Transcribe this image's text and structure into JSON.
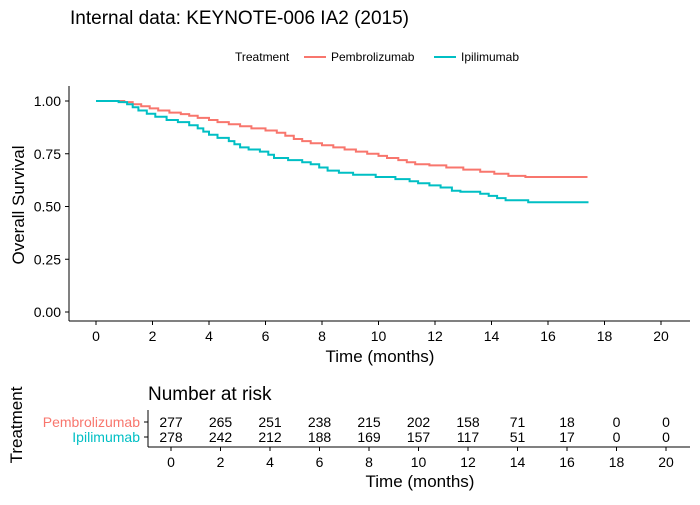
{
  "title": "Internal data: KEYNOTE-006 IA2 (2015)",
  "legend": {
    "title": "Treatment",
    "entries": [
      {
        "label": "Pembrolizumab",
        "color": "#F8766D"
      },
      {
        "label": "Ipilimumab",
        "color": "#00BFC4"
      }
    ]
  },
  "chart_data": [
    {
      "type": "line",
      "subtype": "kaplan-meier step curve",
      "xlabel": "Time (months)",
      "ylabel": "Overall Survival",
      "xlim": [
        0,
        20
      ],
      "ylim": [
        0,
        1
      ],
      "xticks": [
        0,
        2,
        4,
        6,
        8,
        10,
        12,
        14,
        16,
        18,
        20
      ],
      "yticks": [
        0.0,
        0.25,
        0.5,
        0.75,
        1.0
      ],
      "ytick_labels": [
        "0.00",
        "0.25",
        "0.50",
        "0.75",
        "1.00"
      ],
      "grid": false,
      "legend_position": "top",
      "series": [
        {
          "name": "Pembrolizumab",
          "color": "#F8766D",
          "points": [
            [
              0,
              1.0
            ],
            [
              0.5,
              1.0
            ],
            [
              1.0,
              0.995
            ],
            [
              1.3,
              0.985
            ],
            [
              1.6,
              0.975
            ],
            [
              1.9,
              0.965
            ],
            [
              2.2,
              0.955
            ],
            [
              2.6,
              0.945
            ],
            [
              3.0,
              0.938
            ],
            [
              3.3,
              0.93
            ],
            [
              3.6,
              0.92
            ],
            [
              4.0,
              0.91
            ],
            [
              4.3,
              0.9
            ],
            [
              4.7,
              0.89
            ],
            [
              5.1,
              0.88
            ],
            [
              5.5,
              0.87
            ],
            [
              6.0,
              0.86
            ],
            [
              6.4,
              0.85
            ],
            [
              6.7,
              0.835
            ],
            [
              7.0,
              0.82
            ],
            [
              7.3,
              0.81
            ],
            [
              7.6,
              0.8
            ],
            [
              8.0,
              0.79
            ],
            [
              8.4,
              0.78
            ],
            [
              8.8,
              0.77
            ],
            [
              9.2,
              0.76
            ],
            [
              9.6,
              0.75
            ],
            [
              10.0,
              0.74
            ],
            [
              10.3,
              0.73
            ],
            [
              10.7,
              0.72
            ],
            [
              11.0,
              0.71
            ],
            [
              11.3,
              0.7
            ],
            [
              11.8,
              0.695
            ],
            [
              12.4,
              0.685
            ],
            [
              13.0,
              0.675
            ],
            [
              13.6,
              0.665
            ],
            [
              14.1,
              0.655
            ],
            [
              14.6,
              0.645
            ],
            [
              15.2,
              0.64
            ],
            [
              17.4,
              0.64
            ]
          ]
        },
        {
          "name": "Ipilimumab",
          "color": "#00BFC4",
          "points": [
            [
              0,
              1.0
            ],
            [
              0.8,
              0.995
            ],
            [
              1.1,
              0.985
            ],
            [
              1.3,
              0.97
            ],
            [
              1.5,
              0.955
            ],
            [
              1.8,
              0.94
            ],
            [
              2.1,
              0.925
            ],
            [
              2.5,
              0.91
            ],
            [
              2.9,
              0.9
            ],
            [
              3.3,
              0.885
            ],
            [
              3.6,
              0.87
            ],
            [
              3.8,
              0.855
            ],
            [
              4.0,
              0.84
            ],
            [
              4.3,
              0.825
            ],
            [
              4.7,
              0.81
            ],
            [
              4.9,
              0.795
            ],
            [
              5.1,
              0.78
            ],
            [
              5.4,
              0.77
            ],
            [
              5.8,
              0.76
            ],
            [
              6.1,
              0.745
            ],
            [
              6.3,
              0.73
            ],
            [
              6.8,
              0.72
            ],
            [
              7.3,
              0.71
            ],
            [
              7.6,
              0.7
            ],
            [
              7.9,
              0.685
            ],
            [
              8.2,
              0.67
            ],
            [
              8.6,
              0.66
            ],
            [
              9.1,
              0.65
            ],
            [
              9.9,
              0.64
            ],
            [
              10.6,
              0.63
            ],
            [
              11.1,
              0.62
            ],
            [
              11.4,
              0.61
            ],
            [
              11.8,
              0.6
            ],
            [
              12.2,
              0.59
            ],
            [
              12.6,
              0.575
            ],
            [
              12.9,
              0.57
            ],
            [
              13.6,
              0.56
            ],
            [
              13.9,
              0.55
            ],
            [
              14.2,
              0.54
            ],
            [
              14.5,
              0.53
            ],
            [
              15.3,
              0.52
            ],
            [
              17.4,
              0.515
            ]
          ]
        }
      ]
    },
    {
      "type": "table",
      "title": "Number at risk",
      "row_axis_label": "Treatment",
      "xlabel": "Time (months)",
      "columns": [
        0,
        2,
        4,
        6,
        8,
        10,
        12,
        14,
        16,
        18,
        20
      ],
      "rows": [
        {
          "name": "Pembrolizumab",
          "color": "#F8766D",
          "values": [
            277,
            265,
            251,
            238,
            215,
            202,
            158,
            71,
            18,
            0,
            0
          ]
        },
        {
          "name": "Ipilimumab",
          "color": "#00BFC4",
          "values": [
            278,
            242,
            212,
            188,
            169,
            157,
            117,
            51,
            17,
            0,
            0
          ]
        }
      ]
    }
  ]
}
